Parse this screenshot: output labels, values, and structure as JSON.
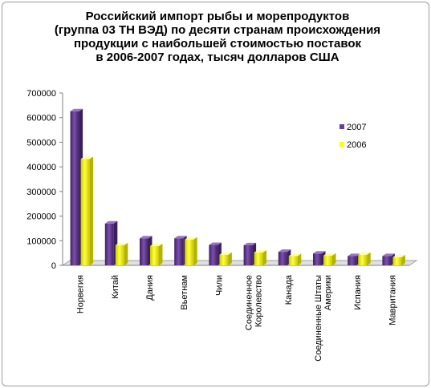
{
  "chart_data": {
    "type": "bar",
    "title_lines": [
      "Российский импорт рыбы и морепродуктов",
      "(группа 03 ТН ВЭД) по десяти странам происхождения",
      "продукции с наибольшей стоимостью поставок",
      "в 2006-2007 годах, тысяч долларов США"
    ],
    "categories": [
      [
        "Норвегия"
      ],
      [
        "Китай"
      ],
      [
        "Дания"
      ],
      [
        "Вьетнам"
      ],
      [
        "Чили"
      ],
      [
        "Соединенное",
        "Королевство"
      ],
      [
        "Канада"
      ],
      [
        "Соединенные Штаты",
        "Америки"
      ],
      [
        "Испания"
      ],
      [
        "Мавритания"
      ]
    ],
    "series": [
      {
        "name": "2007",
        "color": "#6a3d96",
        "values": [
          626000,
          170000,
          110000,
          110000,
          83000,
          82000,
          55000,
          48000,
          38000,
          38000
        ]
      },
      {
        "name": "2006",
        "color": "#ffff00",
        "values": [
          432000,
          82000,
          78000,
          105000,
          43000,
          52000,
          38000,
          40000,
          43000,
          33000
        ]
      }
    ],
    "y_ticks": [
      "0",
      "100000",
      "200000",
      "300000",
      "400000",
      "500000",
      "600000",
      "700000"
    ],
    "ylim": [
      0,
      700000
    ],
    "legend_position": "right",
    "grid": false
  }
}
